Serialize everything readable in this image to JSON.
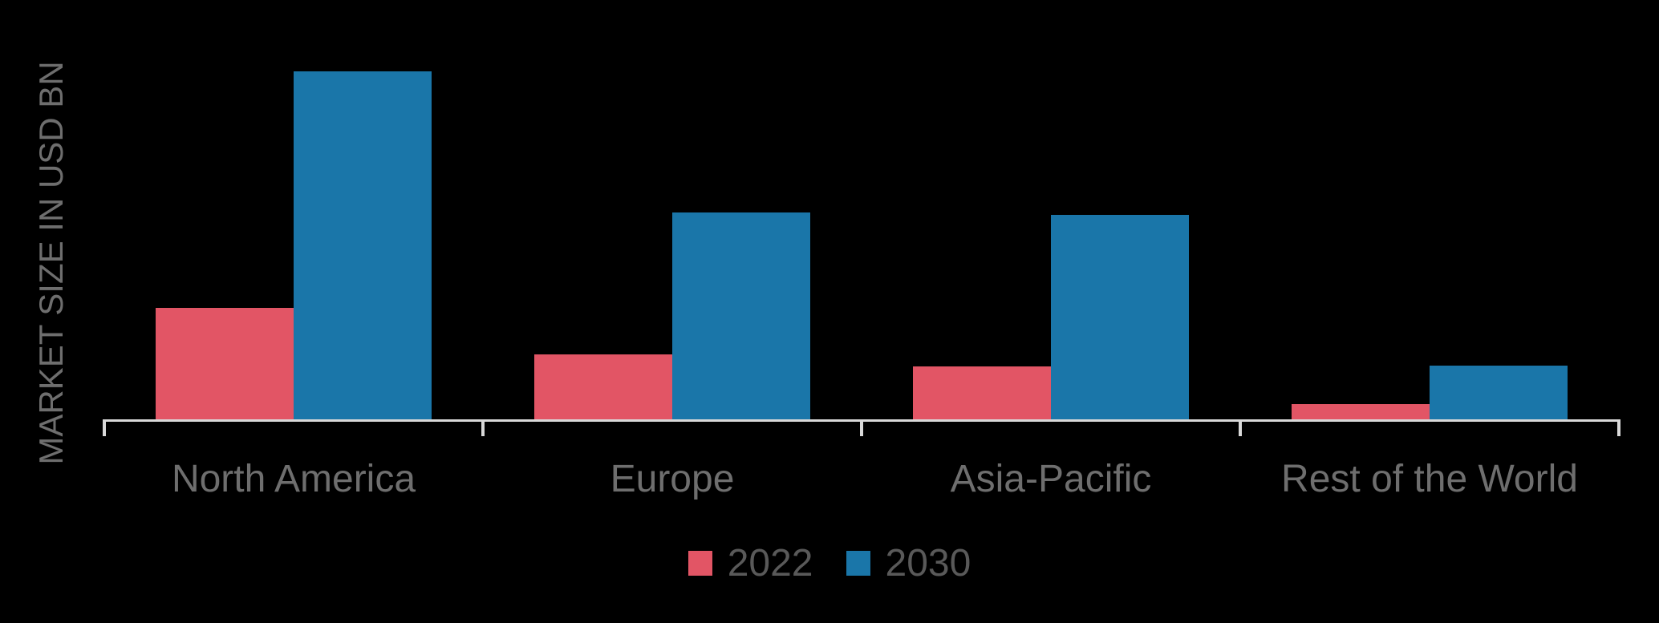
{
  "chart_data": {
    "type": "bar",
    "title": "",
    "xlabel": "",
    "ylabel": "MARKET SIZE IN USD BN",
    "categories": [
      "North America",
      "Europe",
      "Asia-Pacific",
      "Rest of the World"
    ],
    "series": [
      {
        "name": "2022",
        "color": "#E25565",
        "values": [
          13.9,
          8.1,
          6.6,
          1.9
        ]
      },
      {
        "name": "2030",
        "color": "#1A76A9",
        "values": [
          43.4,
          25.8,
          25.5,
          6.7
        ]
      }
    ],
    "ylim": [
      0,
      48
    ],
    "grid": false,
    "legend_position": "bottom-center",
    "axis_color": "#D9D9D9",
    "label_color": "#6E6E6E",
    "legend_text_color": "#595959",
    "background_color": "#000000"
  }
}
